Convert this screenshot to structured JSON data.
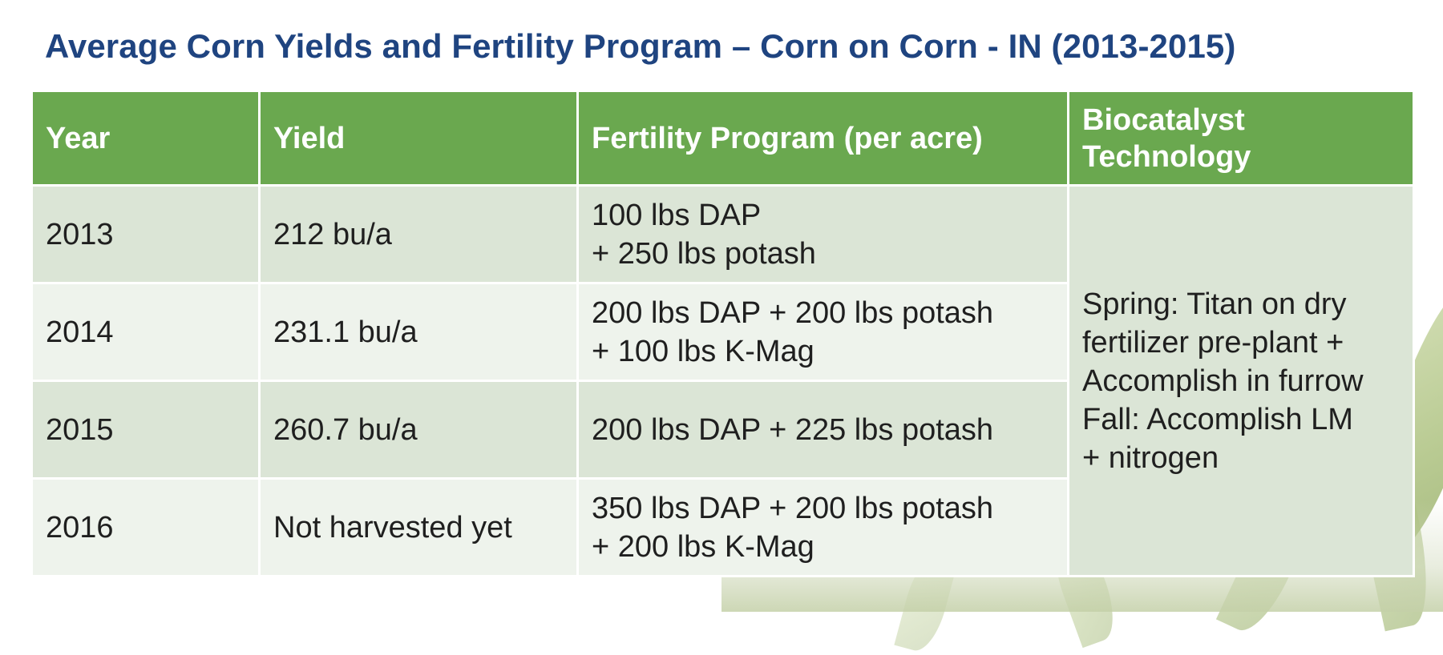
{
  "title": "Average Corn Yields and Fertility Program – Corn on Corn - IN (2013-2015)",
  "table": {
    "headers": {
      "year": "Year",
      "yield": "Yield",
      "fertility": "Fertility Program (per acre)",
      "biocatalyst": "Biocatalyst Technology"
    },
    "rows": [
      {
        "year": "2013",
        "yield": "212 bu/a",
        "fertility": [
          "100 lbs DAP",
          "+ 250 lbs potash"
        ]
      },
      {
        "year": "2014",
        "yield": "231.1 bu/a",
        "fertility": [
          "200 lbs DAP + 200 lbs potash",
          "+ 100 lbs K-Mag"
        ]
      },
      {
        "year": "2015",
        "yield": "260.7 bu/a",
        "fertility": [
          "200 lbs DAP + 225 lbs potash"
        ]
      },
      {
        "year": "2016",
        "yield": "Not harvested yet",
        "fertility": [
          "350 lbs DAP + 200 lbs potash",
          "+ 200 lbs K-Mag"
        ]
      }
    ],
    "biocatalyst_lines": [
      "Spring: Titan on dry",
      "fertilizer pre-plant +",
      "Accomplish in furrow",
      "Fall: Accomplish LM",
      "+ nitrogen"
    ]
  },
  "colors": {
    "title": "#1f4480",
    "header_bg": "#6aa84f",
    "row_dark": "#dbe5d6",
    "row_light": "#eef3ec"
  },
  "decor": {
    "background_image": "corn-leaves-illustration"
  }
}
